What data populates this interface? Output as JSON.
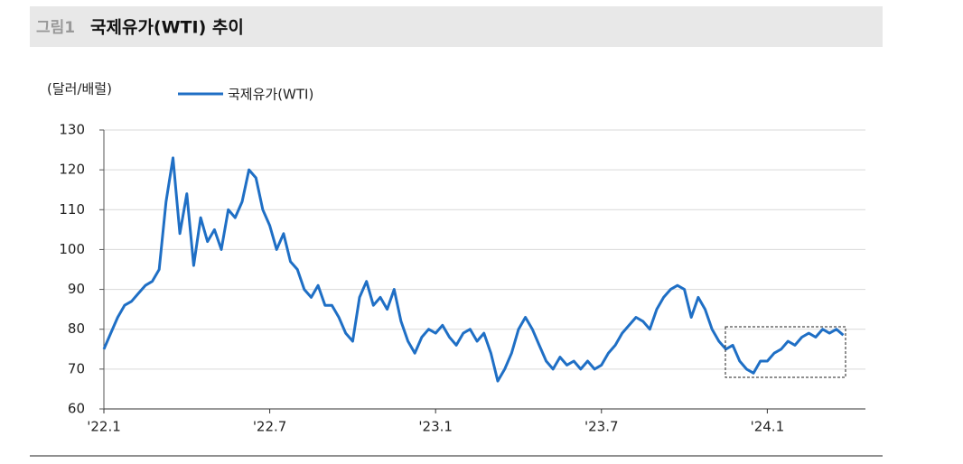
{
  "header": {
    "figure_label": "그림1",
    "title": "국제유가(WTI) 추이"
  },
  "chart_data": {
    "type": "line",
    "y_label": "(달러/배럴)",
    "x": [
      0,
      0.25,
      0.5,
      0.75,
      1,
      1.25,
      1.5,
      1.75,
      2,
      2.25,
      2.5,
      2.75,
      3,
      3.25,
      3.5,
      3.75,
      4,
      4.25,
      4.5,
      4.75,
      5,
      5.25,
      5.5,
      5.75,
      6,
      6.25,
      6.5,
      6.75,
      7,
      7.25,
      7.5,
      7.75,
      8,
      8.25,
      8.5,
      8.75,
      9,
      9.25,
      9.5,
      9.75,
      10,
      10.25,
      10.5,
      10.75,
      11,
      11.25,
      11.5,
      11.75,
      12,
      12.25,
      12.5,
      12.75,
      13,
      13.25,
      13.5,
      13.75,
      14,
      14.25,
      14.5,
      14.75,
      15,
      15.25,
      15.5,
      15.75,
      16,
      16.25,
      16.5,
      16.75,
      17,
      17.25,
      17.5,
      17.75,
      18,
      18.25,
      18.5,
      18.75,
      19,
      19.25,
      19.5,
      19.75,
      20,
      20.25,
      20.5,
      20.75,
      21,
      21.25,
      21.5,
      21.75,
      22,
      22.25,
      22.5,
      22.75,
      23,
      23.25,
      23.5,
      23.75,
      24,
      24.25,
      24.5,
      24.75,
      25,
      25.25,
      25.5,
      25.75,
      26,
      26.25,
      26.5,
      26.75
    ],
    "series": [
      {
        "name": "국제유가(WTI)",
        "color": "#1f6fc5",
        "values": [
          75,
          79,
          83,
          86,
          87,
          89,
          91,
          92,
          95,
          112,
          123,
          104,
          114,
          96,
          108,
          102,
          105,
          100,
          110,
          108,
          112,
          120,
          118,
          110,
          106,
          100,
          104,
          97,
          95,
          90,
          88,
          91,
          86,
          86,
          83,
          79,
          77,
          88,
          92,
          86,
          88,
          85,
          90,
          82,
          77,
          74,
          78,
          80,
          79,
          81,
          78,
          76,
          79,
          80,
          77,
          79,
          74,
          67,
          70,
          74,
          80,
          83,
          80,
          76,
          72,
          70,
          73,
          71,
          72,
          70,
          72,
          70,
          71,
          74,
          76,
          79,
          81,
          83,
          82,
          80,
          85,
          88,
          90,
          91,
          90,
          83,
          88,
          85,
          80,
          77,
          75,
          76,
          72,
          70,
          69,
          72,
          72,
          74,
          75,
          77,
          76,
          78,
          79,
          78,
          80,
          79,
          80,
          78.5
        ]
      }
    ],
    "xlim": [
      0,
      27.55
    ],
    "xticks": [
      {
        "value": 0,
        "label": "'22.1"
      },
      {
        "value": 6,
        "label": "'22.7"
      },
      {
        "value": 12,
        "label": "'23.1"
      },
      {
        "value": 18,
        "label": "'23.7"
      },
      {
        "value": 24,
        "label": "'24.1"
      }
    ],
    "ylim": [
      60,
      130
    ],
    "yticks": [
      60,
      70,
      80,
      90,
      100,
      110,
      120,
      130
    ],
    "grid": true
  }
}
